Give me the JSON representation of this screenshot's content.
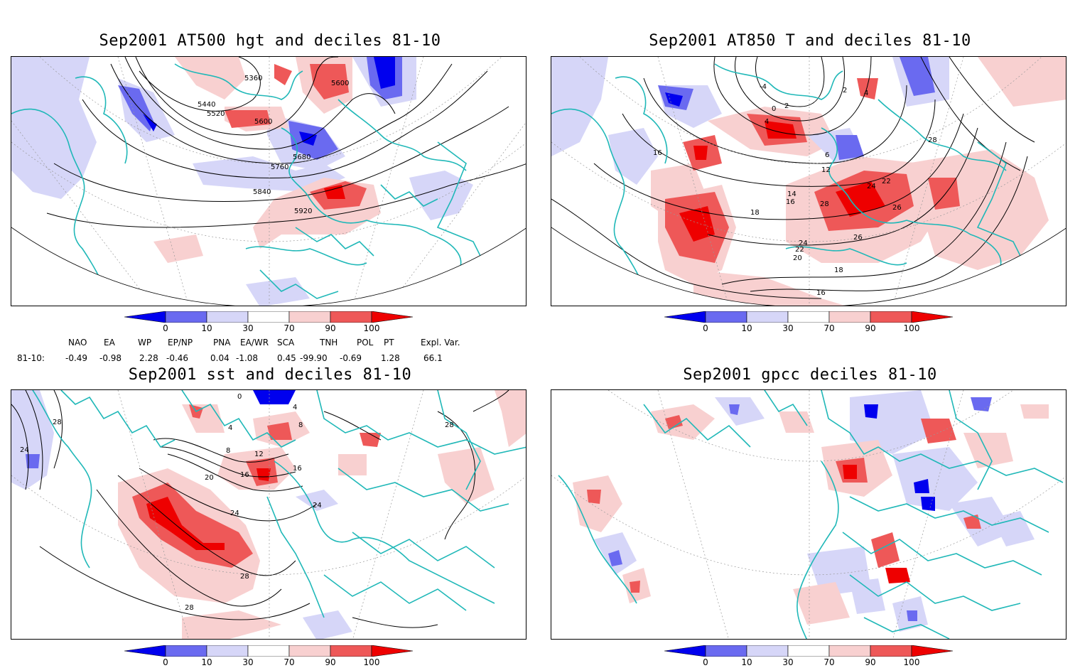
{
  "panels": [
    {
      "id": "p1",
      "title": "Sep2001 AT500 hgt and deciles 81-10"
    },
    {
      "id": "p2",
      "title": "Sep2001 AT850 T and deciles 81-10"
    },
    {
      "id": "p3",
      "title": "Sep2001 sst and deciles 81-10"
    },
    {
      "id": "p4",
      "title": "Sep2001 gpcc deciles 81-10"
    }
  ],
  "contour_labels": {
    "p1": [
      "5360",
      "5440",
      "5520",
      "5600",
      "5600",
      "5680",
      "5760",
      "5840",
      "5920"
    ],
    "p2": [
      "-4",
      "0",
      "2",
      "4",
      "4",
      "2",
      "6",
      "12",
      "14",
      "16",
      "16",
      "18",
      "20",
      "22",
      "24",
      "26",
      "28",
      "28",
      "22",
      "24",
      "26",
      "16",
      "18"
    ],
    "p3": [
      "28",
      "24",
      "0",
      "4",
      "8",
      "12",
      "16",
      "20",
      "24",
      "28",
      "28",
      "4",
      "8",
      "16",
      "24",
      "28"
    ]
  },
  "colorbar": {
    "ticks": [
      "0",
      "10",
      "30",
      "70",
      "90",
      "100"
    ],
    "colors": {
      "dark_blue": "#0000ee",
      "mid_blue": "#6a6af0",
      "light_blue": "#d6d6f8",
      "white": "#ffffff",
      "light_red": "#f8d0d0",
      "mid_red": "#ee5858",
      "dark_red": "#ee0000"
    }
  },
  "indices": {
    "headers": [
      "NAO",
      "EA",
      "WP",
      "EP/NP",
      "PNA",
      "EA/WR",
      "SCA",
      "TNH",
      "POL",
      "PT",
      "Expl. Var."
    ],
    "row_label": "81-10:",
    "values": [
      "-0.49",
      "-0.98",
      "2.28",
      "-0.46",
      "0.04",
      "-1.08",
      "0.45",
      "-99.90",
      "-0.69",
      "1.28",
      "66.1"
    ]
  },
  "map_style": {
    "coast_color": "#20b8b8",
    "contour_color": "#000000",
    "grid_color": "#999999"
  }
}
